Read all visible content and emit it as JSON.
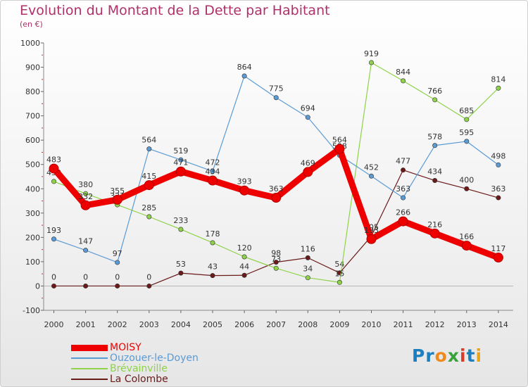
{
  "title": "Evolution du Montant de la Dette par Habitant",
  "subtitle": "(en €)",
  "logo": {
    "text": "Proxiti",
    "letters": [
      "P",
      "r",
      "o",
      "x",
      "i",
      "t",
      "i"
    ],
    "colors": [
      "#1a7fc0",
      "#1a7fc0",
      "#f08a1c",
      "#3aa23a",
      "#d93b2b",
      "#1a7fc0",
      "#e7a51e"
    ]
  },
  "chart_data": {
    "type": "line",
    "x": [
      "2000",
      "2001",
      "2002",
      "2003",
      "2004",
      "2005",
      "2006",
      "2007",
      "2008",
      "2009",
      "2010",
      "2011",
      "2012",
      "2013",
      "2014"
    ],
    "ylim": [
      -100,
      1000
    ],
    "yticks": [
      "-100",
      "0",
      "100",
      "200",
      "300",
      "400",
      "500",
      "600",
      "700",
      "800",
      "900",
      "1000"
    ],
    "grid": false,
    "legend_position": "bottom-left",
    "series": [
      {
        "name": "La Colombe",
        "color": "#6b1a1a",
        "values": [
          0,
          0,
          0,
          0,
          53,
          43,
          44,
          98,
          116,
          54,
          205,
          477,
          434,
          400,
          363
        ],
        "labels": [
          "0",
          "0",
          "0",
          "0",
          "53",
          "43",
          "44",
          "98",
          "116",
          "54",
          "205",
          "477",
          "434",
          "400",
          "363"
        ]
      },
      {
        "name": "Brévainville",
        "color": "#8fd24a",
        "values": [
          430,
          380,
          334,
          285,
          233,
          178,
          120,
          73,
          34,
          15,
          919,
          844,
          766,
          685,
          814
        ],
        "labels": [
          "430",
          "380",
          "334",
          "285",
          "233",
          "178",
          "120",
          "73",
          "34",
          "15",
          "919",
          "844",
          "766",
          "685",
          "814"
        ]
      },
      {
        "name": "Ouzouer-le-Doyen",
        "color": "#5b9bd5",
        "values": [
          193,
          147,
          97,
          564,
          519,
          472,
          864,
          775,
          694,
          538,
          452,
          363,
          578,
          595,
          498
        ],
        "labels": [
          "193",
          "147",
          "97",
          "564",
          "519",
          "472",
          "864",
          "775",
          "694",
          "538",
          "452",
          "363",
          "578",
          "595",
          "498"
        ]
      },
      {
        "name": "MOISY",
        "color": "#ee0000",
        "values": [
          483,
          332,
          355,
          415,
          471,
          434,
          393,
          363,
          469,
          564,
          193,
          266,
          216,
          166,
          117
        ],
        "labels": [
          "483",
          "332",
          "355",
          "415",
          "471",
          "434",
          "393",
          "363",
          "469",
          "564",
          "193",
          "266",
          "216",
          "166",
          "117"
        ]
      }
    ]
  },
  "legend": [
    {
      "name": "MOISY",
      "color": "#ee0000",
      "thick": true
    },
    {
      "name": "Ouzouer-le-Doyen",
      "color": "#5b9bd5",
      "thick": false
    },
    {
      "name": "Brévainville",
      "color": "#8fd24a",
      "thick": false
    },
    {
      "name": "La Colombe",
      "color": "#6b1a1a",
      "thick": false
    }
  ]
}
